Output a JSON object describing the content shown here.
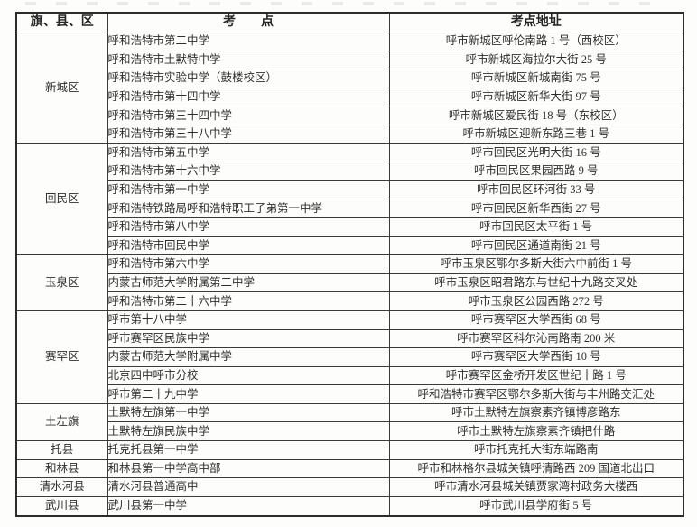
{
  "colors": {
    "page_background": "#fdfdfb",
    "border": "#3a3a3a",
    "text": "#2e2e2e"
  },
  "table": {
    "columns": [
      {
        "key": "district",
        "label": "旗、县、区"
      },
      {
        "key": "site",
        "label": "考　　点"
      },
      {
        "key": "address",
        "label": "考点地址"
      }
    ],
    "sections": [
      {
        "district": "新城区",
        "rows": [
          {
            "site": "呼和浩特市第二中学",
            "address": "呼市新城区呼伦南路 1 号（西校区）"
          },
          {
            "site": "呼和浩特市土默特中学",
            "address": "呼市新城区海拉尔大街 25 号"
          },
          {
            "site": "呼和浩特市实验中学（鼓楼校区）",
            "address": "呼市新城区新城南街 75 号"
          },
          {
            "site": "呼和浩特市第十四中学",
            "address": "呼市新城区新华大街 97 号"
          },
          {
            "site": "呼和浩特市第三十四中学",
            "address": "呼市新城区爱民街 18 号（东校区）"
          },
          {
            "site": "呼和浩特市第三十八中学",
            "address": "呼市新城区迎新东路三巷 1 号"
          }
        ]
      },
      {
        "district": "回民区",
        "rows": [
          {
            "site": "呼和浩特市第五中学",
            "address": "呼市回民区光明大街 16 号"
          },
          {
            "site": "呼和浩特市第十六中学",
            "address": "呼市回民区果园西路 9 号"
          },
          {
            "site": "呼和浩特市第一中学",
            "address": "呼市回民区环河街 33 号"
          },
          {
            "site": "呼和浩特铁路局呼和浩特职工子弟第一中学",
            "address": "呼市回民区新华西街 27 号"
          },
          {
            "site": "呼和浩特市第八中学",
            "address": "呼市回民区太平街 1 号"
          },
          {
            "site": "呼和浩特市回民中学",
            "address": "呼市回民区通道南街 21 号"
          }
        ]
      },
      {
        "district": "玉泉区",
        "rows": [
          {
            "site": "呼和浩特市第六中学",
            "address": "呼市玉泉区鄂尔多斯大街六中前街 1 号"
          },
          {
            "site": "内蒙古师范大学附属第二中学",
            "address": "呼市玉泉区昭君路东与世纪十九路交叉处"
          },
          {
            "site": "呼和浩特市第二十六中学",
            "address": "呼市玉泉区公园西路 272 号"
          }
        ]
      },
      {
        "district": "赛罕区",
        "rows": [
          {
            "site": "呼市第十八中学",
            "address": "呼市赛罕区大学西街 68 号"
          },
          {
            "site": "呼市赛罕区民族中学",
            "address": "呼市赛罕区科尔沁南路南 200 米"
          },
          {
            "site": "内蒙古师范大学附属中学",
            "address": "呼市赛罕区大学西街 10 号"
          },
          {
            "site": "北京四中呼市分校",
            "address": "呼市赛罕区金桥开发区世纪十路 1 号"
          },
          {
            "site": "呼市第二十九中学",
            "address": "呼和浩特市赛罕区鄂尔多斯大街与丰州路交汇处"
          }
        ]
      },
      {
        "district": "土左旗",
        "rows": [
          {
            "site": "土默特左旗第一中学",
            "address": "呼市土默特左旗察素齐镇博彦路东"
          },
          {
            "site": "土默特左旗民族中学",
            "address": "呼市土默特左旗察素齐镇把什路"
          }
        ]
      },
      {
        "district": "托县",
        "rows": [
          {
            "site": "托克托县第一中学",
            "address": "呼市托克托大街东端路南"
          }
        ]
      },
      {
        "district": "和林县",
        "rows": [
          {
            "site": "和林县第一中学高中部",
            "address": "呼市和林格尔县城关镇呼清路西 209 国道北出口"
          }
        ]
      },
      {
        "district": "清水河县",
        "rows": [
          {
            "site": "清水河县普通高中",
            "address": "呼市清水河县城关镇贾家湾村政务大楼西"
          }
        ]
      },
      {
        "district": "武川县",
        "rows": [
          {
            "site": "武川县第一中学",
            "address": "呼市武川县学府街 5 号"
          }
        ]
      }
    ]
  }
}
